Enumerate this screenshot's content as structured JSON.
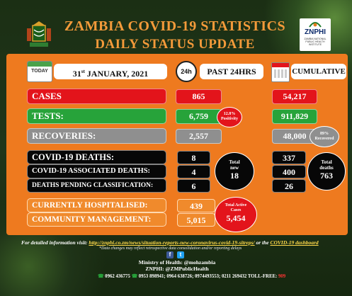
{
  "header": {
    "title": "ZAMBIA COVID-19 STATISTICS",
    "subtitle": "DAILY STATUS UPDATE",
    "logo_text": "ZNPHI",
    "logo_subtext": "ZAMBIA NATIONAL PUBLIC HEALTH INSTITUTE"
  },
  "columns": {
    "today_icon": "TODAY",
    "date_day": "31",
    "date_suffix": "st",
    "date_rest": " JANUARY, 2021",
    "clock_icon": "24h",
    "past_label": "PAST 24HRS",
    "cumulative_label": "CUMULATIVE"
  },
  "rows": {
    "cases": {
      "label": "CASES",
      "past24": "865",
      "cumulative": "54,217"
    },
    "tests": {
      "label": "TESTS:",
      "past24": "6,759",
      "positivity": "12.8%",
      "positivity_label": "Positivity",
      "cumulative": "911,829"
    },
    "recoveries": {
      "label": "RECOVERIES:",
      "past24": "2,557",
      "cumulative": "48,000",
      "recovered_pct": "89%",
      "recovered_label": "Recovered"
    },
    "covid_deaths": {
      "label": "COVID-19 DEATHS:",
      "past24": "8",
      "cumulative": "337"
    },
    "associated_deaths": {
      "label": "COVID-19 ASSOCIATED DEATHS:",
      "past24": "4",
      "cumulative": "400"
    },
    "pending": {
      "label": "DEATHS PENDING CLASSIFICATION:",
      "past24": "6",
      "cumulative": "26"
    },
    "hospitalised": {
      "label": "CURRENTLY HOSPITALISED:",
      "value": "439"
    },
    "community": {
      "label": "COMMUNITY MANAGEMENT:",
      "value": "5,015"
    }
  },
  "totals": {
    "new_label1": "Total",
    "new_label2": "new",
    "new_value": "18",
    "deaths_label1": "Total",
    "deaths_label2": "deaths",
    "deaths_value": "763",
    "active_label1": "Total Active",
    "active_label2": "Cases",
    "active_value": "5,454"
  },
  "footer": {
    "info_prefix": "For detailed information visit: ",
    "info_link": "http://znphi.co.zm/news/situation-reports-new-coronavirus-covid-19-sitreps/",
    "info_mid": " or the ",
    "info_link2": "COVID-19 dashboard",
    "note": "*Data changes may reflect retrospective data consolidation and/or reporting delays",
    "facebook_icon": "f",
    "twitter_icon": "t",
    "ministry": "Ministry of Health: @mohzambia",
    "znphi": "ZNPHI: @ZMPublicHealth",
    "phones": "0962 436775 ",
    "phones_mid": " 0953 898941; 0964 638726; 0974493553; 0211 269432 TOLL-FREE: ",
    "tollfree": "909"
  },
  "colors": {
    "panel": "#ee7a1f",
    "red": "#e3141b",
    "green": "#27a33a",
    "grey": "#8f8f8f",
    "title": "#f39a3a"
  }
}
